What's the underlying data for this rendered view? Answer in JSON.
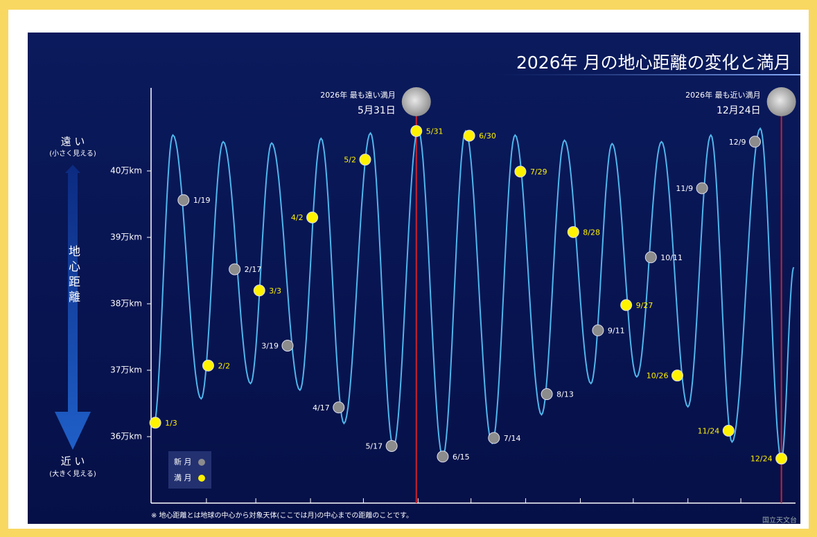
{
  "chart_data": {
    "type": "scatter",
    "title": "2026年 月の地心距離の変化と満月",
    "far_label": "遠 い",
    "far_note": "(小さく見える)",
    "ylabel": "地心距離",
    "near_label": "近 い",
    "near_note": "(大きく見える)",
    "ylim": [
      35,
      41.25
    ],
    "yticks": [
      {
        "value": 36,
        "label": "36万km"
      },
      {
        "value": 37,
        "label": "37万km"
      },
      {
        "value": 38,
        "label": "38万km"
      },
      {
        "value": 39,
        "label": "39万km"
      },
      {
        "value": 40,
        "label": "40万km"
      }
    ],
    "xlim": [
      1,
      366
    ],
    "xticks": [
      32,
      60,
      91,
      121,
      152,
      182,
      213,
      244,
      274,
      305,
      335
    ],
    "curve": {
      "color": "#4fb6ec",
      "x": [
        2,
        13,
        29,
        41.5,
        57,
        69,
        85,
        97,
        110,
        125,
        138,
        152,
        166,
        179,
        194,
        207,
        222,
        235,
        250,
        262,
        276,
        290,
        305,
        318,
        330,
        346,
        358,
        365
      ],
      "values": [
        36.15,
        40.54,
        36.57,
        40.44,
        36.8,
        40.42,
        36.7,
        40.49,
        36.2,
        40.57,
        35.85,
        40.63,
        35.7,
        40.6,
        35.9,
        40.54,
        36.33,
        40.46,
        36.8,
        40.41,
        36.9,
        40.44,
        36.45,
        40.54,
        35.92,
        40.64,
        35.65,
        38.55
      ]
    },
    "series": [
      {
        "name": "新 月",
        "color": "#8c8c8c",
        "label_color": "#ffffff",
        "dates": [
          "1/19",
          "2/17",
          "3/19",
          "4/17",
          "5/17",
          "6/15",
          "7/14",
          "8/13",
          "9/11",
          "10/11",
          "11/9",
          "12/9"
        ],
        "values": [
          39.56,
          38.52,
          37.37,
          36.44,
          35.86,
          35.7,
          35.98,
          36.64,
          37.6,
          38.7,
          39.74,
          40.44
        ]
      },
      {
        "name": "満 月",
        "color": "#fff200",
        "label_color": "#fff200",
        "dates": [
          "1/3",
          "2/2",
          "3/3",
          "4/2",
          "5/2",
          "5/31",
          "6/30",
          "7/29",
          "8/28",
          "9/27",
          "10/26",
          "11/24",
          "12/24"
        ],
        "values": [
          36.21,
          37.07,
          38.2,
          39.3,
          40.17,
          40.6,
          40.53,
          39.99,
          39.08,
          37.98,
          36.92,
          36.09,
          35.67
        ]
      }
    ],
    "annotations": [
      {
        "text": "2026年 最も遠い満月",
        "date": "5月31日",
        "color": "#d0202a"
      },
      {
        "text": "2026年 最も近い満月",
        "date": "12月24日",
        "color": "#d0202a"
      }
    ],
    "footnote": "※ 地心距離とは地球の中心から対象天体(ここでは月)の中心までの距離のことです。",
    "credit": "国立天文台"
  }
}
